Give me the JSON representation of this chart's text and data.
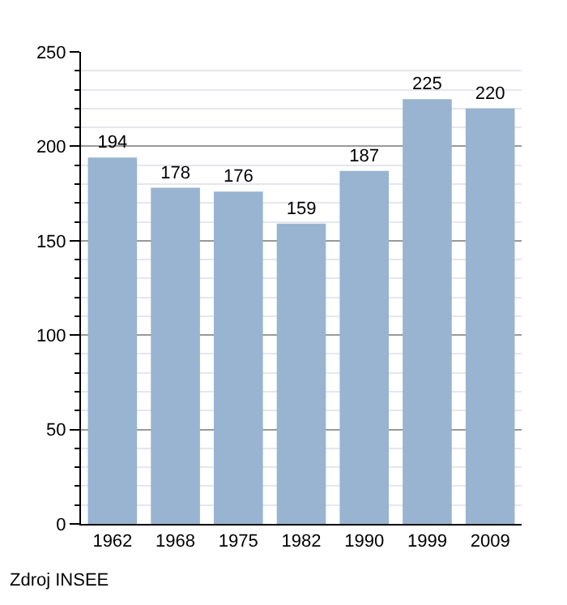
{
  "chart_data": {
    "type": "bar",
    "categories": [
      "1962",
      "1968",
      "1975",
      "1982",
      "1990",
      "1999",
      "2009"
    ],
    "values": [
      194,
      178,
      176,
      159,
      187,
      225,
      220
    ],
    "color": "#98b4d0",
    "data_labels": true,
    "ylim": [
      0,
      250
    ],
    "yticks": [
      0,
      50,
      100,
      150,
      200,
      250
    ],
    "grid": "y",
    "annotations": [
      "Zdroj INSEE"
    ]
  }
}
